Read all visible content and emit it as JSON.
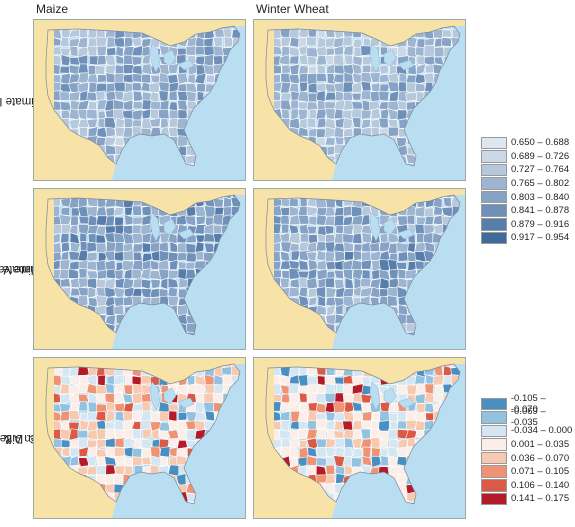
{
  "columns": [
    {
      "id": "maize",
      "title": "Maize"
    },
    {
      "id": "wheat",
      "title": "Winter Wheat"
    }
  ],
  "rows": [
    {
      "id": "A",
      "label_lines": [
        "A. Climate Indices"
      ],
      "scale": "blue"
    },
    {
      "id": "B",
      "label_lines": [
        "B. Climate Indices &",
        "Surface Climate Variables"
      ],
      "scale": "blue"
    },
    {
      "id": "C",
      "label_lines": [
        "C. Difference",
        "between A & B"
      ],
      "scale": "diverging"
    }
  ],
  "legends": {
    "blue": {
      "items": [
        {
          "label": "0.650 – 0.688",
          "color": "#dde7f0"
        },
        {
          "label": "0.689 – 0.726",
          "color": "#cbd9e6"
        },
        {
          "label": "0.727 – 0.764",
          "color": "#b5c8dc"
        },
        {
          "label": "0.765 – 0.802",
          "color": "#9db5d0"
        },
        {
          "label": "0.803 – 0.840",
          "color": "#86a3c5"
        },
        {
          "label": "0.841 – 0.878",
          "color": "#6f90b9"
        },
        {
          "label": "0.879 – 0.916",
          "color": "#577dab"
        },
        {
          "label": "0.917 – 0.954",
          "color": "#3f6a9c"
        }
      ]
    },
    "diverging": {
      "items": [
        {
          "label": "-0.105 – -0.070",
          "color": "#4a8fc2"
        },
        {
          "label": "-0.069 – -0.035",
          "color": "#93c1e0"
        },
        {
          "label": "-0.034 – 0.000",
          "color": "#d3e6f2"
        },
        {
          "label": "0.001 – 0.035",
          "color": "#fbeee8"
        },
        {
          "label": "0.036 – 0.070",
          "color": "#f7c9b0"
        },
        {
          "label": "0.071 – 0.105",
          "color": "#ee9474"
        },
        {
          "label": "0.106 – 0.140",
          "color": "#da5a45"
        },
        {
          "label": "0.141 – 0.175",
          "color": "#b51a28"
        }
      ]
    }
  },
  "map_colors": {
    "ocean": "#b9def2",
    "neighbor_land": "#f7e3a8",
    "lakes": "#b9def2",
    "no_data": "#f7e3a8",
    "county_border": "#ffffff"
  }
}
